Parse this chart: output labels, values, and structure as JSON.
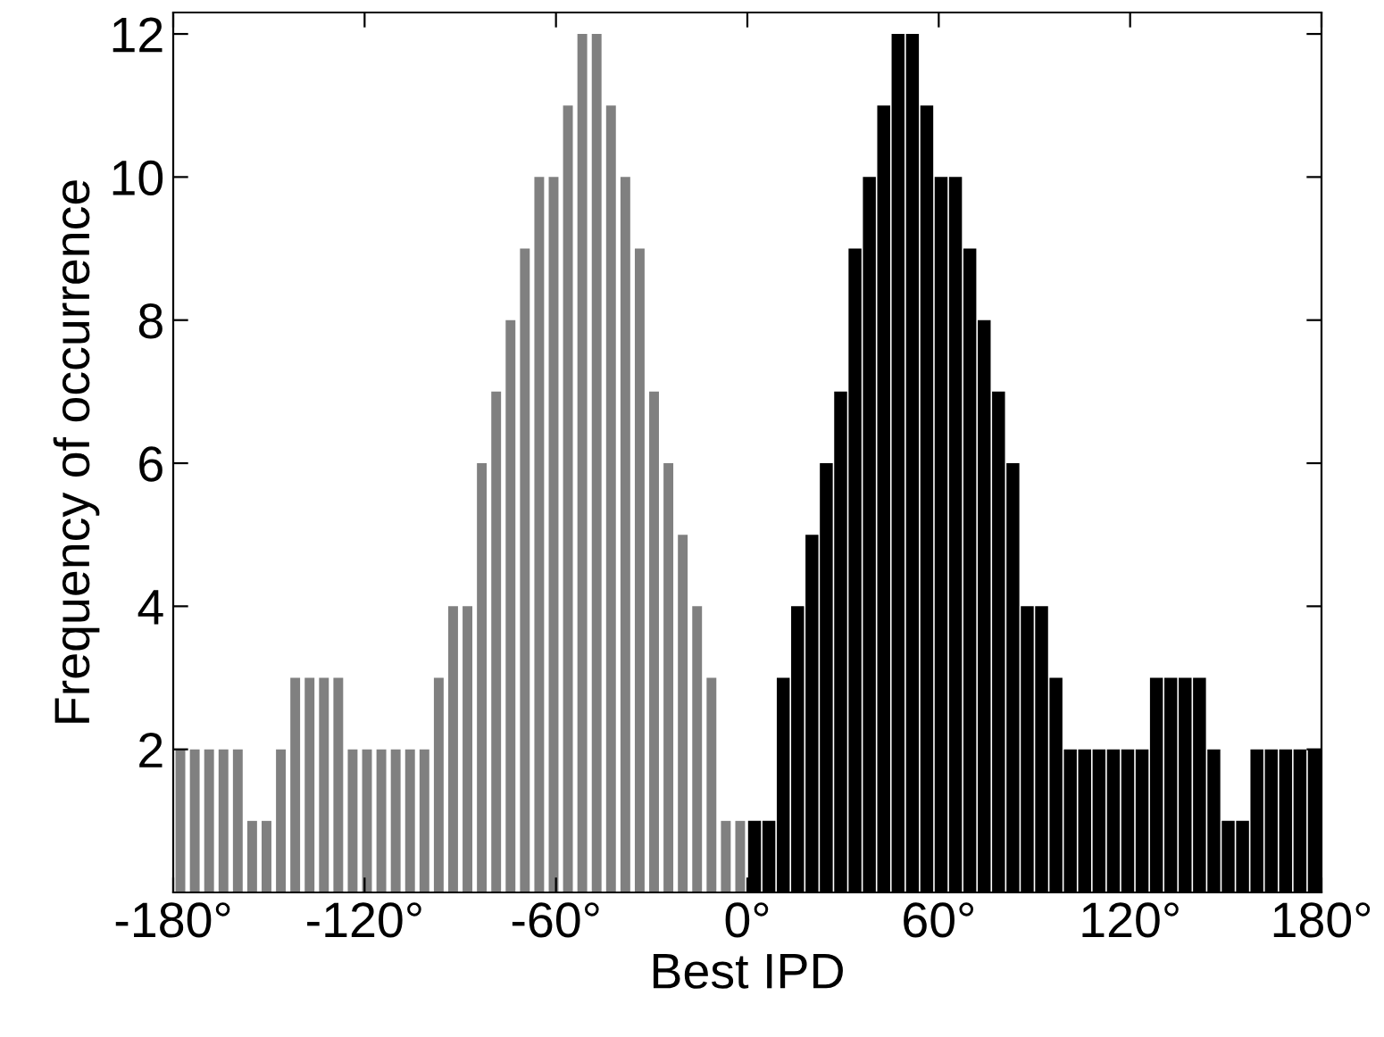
{
  "chart_data": {
    "type": "histogram",
    "xlabel": "Best IPD",
    "ylabel": "Frequency of occurrence",
    "bins": [
      -180,
      -175.5,
      -171,
      -166.5,
      -162,
      -157.5,
      -153,
      -148.5,
      -144,
      -139.5,
      -135,
      -130.5,
      -126,
      -121.5,
      -117,
      -112.5,
      -108,
      -103.5,
      -99,
      -94.5,
      -90,
      -85.5,
      -81,
      -76.5,
      -72,
      -67.5,
      -63,
      -58.5,
      -54,
      -49.5,
      -45,
      -40.5,
      -36,
      -31.5,
      -27,
      -22.5,
      -18,
      -13.5,
      -9,
      -4.5,
      0,
      4.5,
      9,
      13.5,
      18,
      22.5,
      27,
      31.5,
      36,
      40.5,
      45,
      49.5,
      54,
      58.5,
      63,
      67.5,
      72,
      76.5,
      81,
      85.5,
      90,
      94.5,
      99,
      103.5,
      108,
      112.5,
      117,
      121.5,
      126,
      130.5,
      135,
      139.5,
      144,
      148.5,
      153,
      157.5,
      162,
      166.5,
      171,
      175.5,
      180
    ],
    "series": [
      {
        "color": "#808080",
        "values": [
          2,
          2,
          2,
          2,
          2,
          1,
          1,
          2,
          3,
          3,
          3,
          3,
          2,
          2,
          2,
          2,
          2,
          2,
          3,
          4,
          4,
          6,
          7,
          8,
          9,
          10,
          10,
          11,
          12,
          12,
          11,
          10,
          9,
          7,
          6,
          5,
          4,
          3,
          1,
          1,
          null,
          null,
          null,
          null,
          null,
          null,
          null,
          null,
          null,
          null,
          null,
          null,
          null,
          null,
          null,
          null,
          null,
          null,
          null,
          null,
          null,
          null,
          null,
          null,
          null,
          null,
          null,
          null,
          null,
          null,
          null,
          null,
          null,
          null,
          null,
          null,
          null,
          null,
          null,
          null
        ]
      },
      {
        "color": "#000000",
        "values": [
          null,
          null,
          null,
          null,
          null,
          null,
          null,
          null,
          null,
          null,
          null,
          null,
          null,
          null,
          null,
          null,
          null,
          null,
          null,
          null,
          null,
          null,
          null,
          null,
          null,
          null,
          null,
          null,
          null,
          null,
          null,
          null,
          null,
          null,
          null,
          null,
          null,
          null,
          null,
          null,
          1,
          1,
          3,
          4,
          5,
          6,
          7,
          9,
          10,
          11,
          12,
          12,
          11,
          10,
          10,
          9,
          8,
          7,
          6,
          4,
          4,
          3,
          2,
          2,
          2,
          2,
          2,
          2,
          3,
          3,
          3,
          3,
          2,
          1,
          1,
          2,
          2,
          2,
          2,
          2
        ]
      }
    ],
    "xlim": [
      -180,
      180
    ],
    "xticks": [
      {
        "value": -180,
        "label": "-180°"
      },
      {
        "value": -120,
        "label": "-120°"
      },
      {
        "value": -60,
        "label": "-60°"
      },
      {
        "value": 0,
        "label": "0°"
      },
      {
        "value": 60,
        "label": "60°"
      },
      {
        "value": 120,
        "label": "120°"
      },
      {
        "value": 180,
        "label": "180°"
      }
    ],
    "ylim": [
      0,
      12.3
    ],
    "yticks": [
      2,
      4,
      6,
      8,
      10,
      12
    ],
    "grid": false,
    "legend": false
  }
}
